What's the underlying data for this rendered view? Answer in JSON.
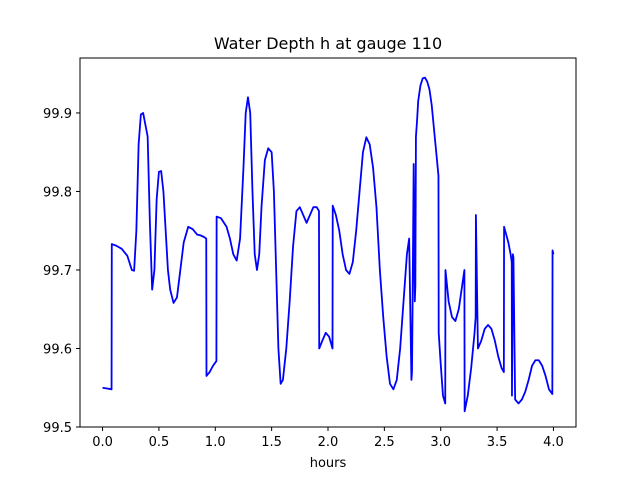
{
  "chart_data": {
    "type": "line",
    "title": "Water Depth h at gauge 110",
    "xlabel": "hours",
    "ylabel": "",
    "xlim": [
      -0.2,
      4.2
    ],
    "ylim": [
      99.5,
      99.97
    ],
    "xticks": [
      0.0,
      0.5,
      1.0,
      1.5,
      2.0,
      2.5,
      3.0,
      3.5,
      4.0
    ],
    "xtick_labels": [
      "0.0",
      "0.5",
      "1.0",
      "1.5",
      "2.0",
      "2.5",
      "3.0",
      "3.5",
      "4.0"
    ],
    "yticks": [
      99.5,
      99.6,
      99.7,
      99.8,
      99.9
    ],
    "ytick_labels": [
      "99.5",
      "99.6",
      "99.7",
      "99.8",
      "99.9"
    ],
    "grid": false,
    "series_color": "#0000ff",
    "series": [
      {
        "x": [
          0.0,
          0.04,
          0.08,
          0.082,
          0.12,
          0.17,
          0.22,
          0.26,
          0.28,
          0.3,
          0.32,
          0.34,
          0.36,
          0.38,
          0.4,
          0.42,
          0.44,
          0.46,
          0.48,
          0.5,
          0.52,
          0.54,
          0.56,
          0.58,
          0.6,
          0.63,
          0.66,
          0.69,
          0.72,
          0.76,
          0.8,
          0.84,
          0.87,
          0.9,
          0.92,
          0.922,
          0.95,
          0.98,
          1.01,
          1.012,
          1.05,
          1.1,
          1.13,
          1.16,
          1.19,
          1.22,
          1.25,
          1.27,
          1.29,
          1.31,
          1.33,
          1.35,
          1.37,
          1.39,
          1.41,
          1.44,
          1.47,
          1.5,
          1.52,
          1.54,
          1.56,
          1.58,
          1.6,
          1.63,
          1.66,
          1.69,
          1.72,
          1.75,
          1.78,
          1.81,
          1.84,
          1.87,
          1.9,
          1.92,
          1.922,
          1.95,
          1.98,
          2.01,
          2.03,
          2.04,
          2.042,
          2.07,
          2.1,
          2.13,
          2.16,
          2.19,
          2.22,
          2.25,
          2.28,
          2.31,
          2.34,
          2.37,
          2.4,
          2.43,
          2.46,
          2.49,
          2.52,
          2.55,
          2.58,
          2.61,
          2.64,
          2.67,
          2.7,
          2.72,
          2.74,
          2.745,
          2.75,
          2.76,
          2.77,
          2.775,
          2.78,
          2.785,
          2.79,
          2.8,
          2.82,
          2.84,
          2.86,
          2.88,
          2.9,
          2.92,
          2.94,
          2.96,
          2.98,
          2.982,
          3.0,
          3.02,
          3.04,
          3.042,
          3.07,
          3.1,
          3.13,
          3.16,
          3.19,
          3.21,
          3.212,
          3.24,
          3.27,
          3.3,
          3.31,
          3.312,
          3.33,
          3.36,
          3.39,
          3.42,
          3.45,
          3.48,
          3.51,
          3.54,
          3.56,
          3.562,
          3.6,
          3.62,
          3.63,
          3.632,
          3.64,
          3.645,
          3.66,
          3.69,
          3.72,
          3.75,
          3.78,
          3.81,
          3.84,
          3.87,
          3.9,
          3.93,
          3.96,
          3.99,
          3.992,
          4.0
        ],
        "y": [
          99.55,
          99.549,
          99.548,
          99.733,
          99.731,
          99.727,
          99.718,
          99.7,
          99.699,
          99.75,
          99.86,
          99.898,
          99.9,
          99.885,
          99.87,
          99.76,
          99.675,
          99.7,
          99.79,
          99.825,
          99.826,
          99.8,
          99.75,
          99.7,
          99.675,
          99.658,
          99.665,
          99.7,
          99.735,
          99.755,
          99.752,
          99.745,
          99.744,
          99.742,
          99.74,
          99.565,
          99.57,
          99.578,
          99.584,
          99.768,
          99.766,
          99.755,
          99.74,
          99.72,
          99.712,
          99.74,
          99.83,
          99.9,
          99.92,
          99.9,
          99.8,
          99.72,
          99.7,
          99.72,
          99.78,
          99.84,
          99.855,
          99.85,
          99.8,
          99.7,
          99.6,
          99.555,
          99.56,
          99.6,
          99.66,
          99.73,
          99.775,
          99.78,
          99.77,
          99.76,
          99.77,
          99.78,
          99.78,
          99.775,
          99.6,
          99.61,
          99.62,
          99.615,
          99.605,
          99.6,
          99.782,
          99.77,
          99.75,
          99.72,
          99.7,
          99.695,
          99.71,
          99.75,
          99.8,
          99.85,
          99.869,
          99.86,
          99.83,
          99.78,
          99.7,
          99.64,
          99.59,
          99.555,
          99.548,
          99.56,
          99.6,
          99.66,
          99.72,
          99.74,
          99.56,
          99.57,
          99.65,
          99.835,
          99.66,
          99.68,
          99.87,
          99.88,
          99.89,
          99.915,
          99.935,
          99.944,
          99.945,
          99.94,
          99.93,
          99.91,
          99.88,
          99.85,
          99.82,
          99.62,
          99.58,
          99.54,
          99.53,
          99.7,
          99.66,
          99.64,
          99.635,
          99.65,
          99.68,
          99.7,
          99.52,
          99.54,
          99.575,
          99.62,
          99.64,
          99.77,
          99.6,
          99.61,
          99.625,
          99.63,
          99.625,
          99.61,
          99.59,
          99.575,
          99.57,
          99.755,
          99.735,
          99.72,
          99.71,
          99.54,
          99.72,
          99.716,
          99.535,
          99.53,
          99.535,
          99.545,
          99.56,
          99.578,
          99.585,
          99.585,
          99.578,
          99.565,
          99.548,
          99.542,
          99.725,
          99.72
        ]
      }
    ]
  }
}
